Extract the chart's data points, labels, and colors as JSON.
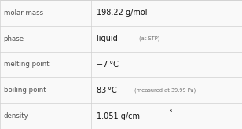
{
  "rows": [
    {
      "label": "molar mass",
      "value_main": "198.22 g/mol",
      "type": "simple"
    },
    {
      "label": "phase",
      "value_main": "liquid",
      "value_sub": "(at STP)",
      "type": "with_sub"
    },
    {
      "label": "melting point",
      "value_main": "−7 °C",
      "type": "simple"
    },
    {
      "label": "boiling point",
      "value_main": "83 °C",
      "value_sub": "(measured at 39.99 Pa)",
      "type": "with_sub"
    },
    {
      "label": "density",
      "value_main": "1.051 g/cm",
      "value_sup": "3",
      "type": "superscript"
    }
  ],
  "bg_color": "#f9f9f9",
  "border_color": "#d0d0d0",
  "label_color": "#505050",
  "value_color": "#111111",
  "sub_color": "#707070",
  "label_fontsize": 6.2,
  "value_fontsize": 7.0,
  "sub_fontsize": 4.8,
  "col_split": 0.375
}
